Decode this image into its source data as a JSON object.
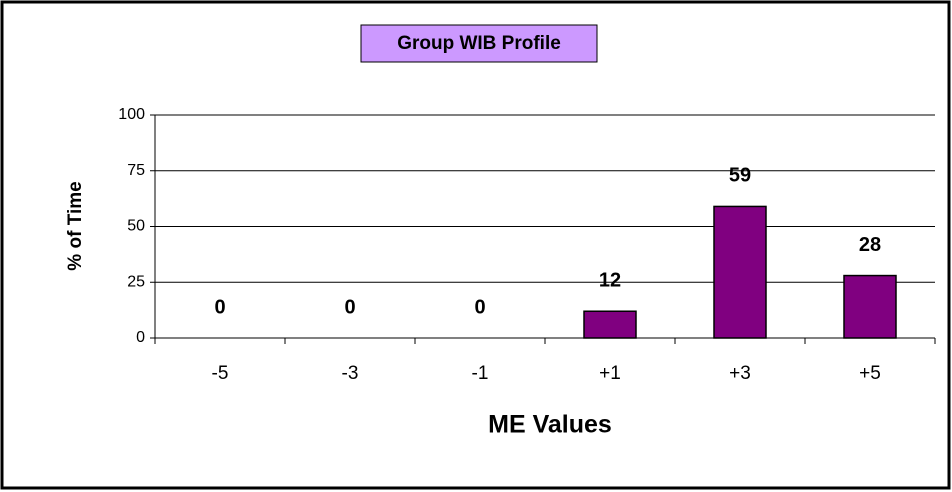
{
  "chart_data": {
    "type": "bar",
    "title": "Group WIB Profile",
    "x_label": "ME Values",
    "y_label": "% of Time",
    "categories": [
      "-5",
      "-3",
      "-1",
      "+1",
      "+3",
      "+5"
    ],
    "values": [
      0,
      0,
      0,
      12,
      59,
      28
    ],
    "color": "#800080",
    "ylim": [
      0,
      100
    ],
    "yticks": [
      0,
      25,
      50,
      75,
      100
    ],
    "grid": true
  }
}
